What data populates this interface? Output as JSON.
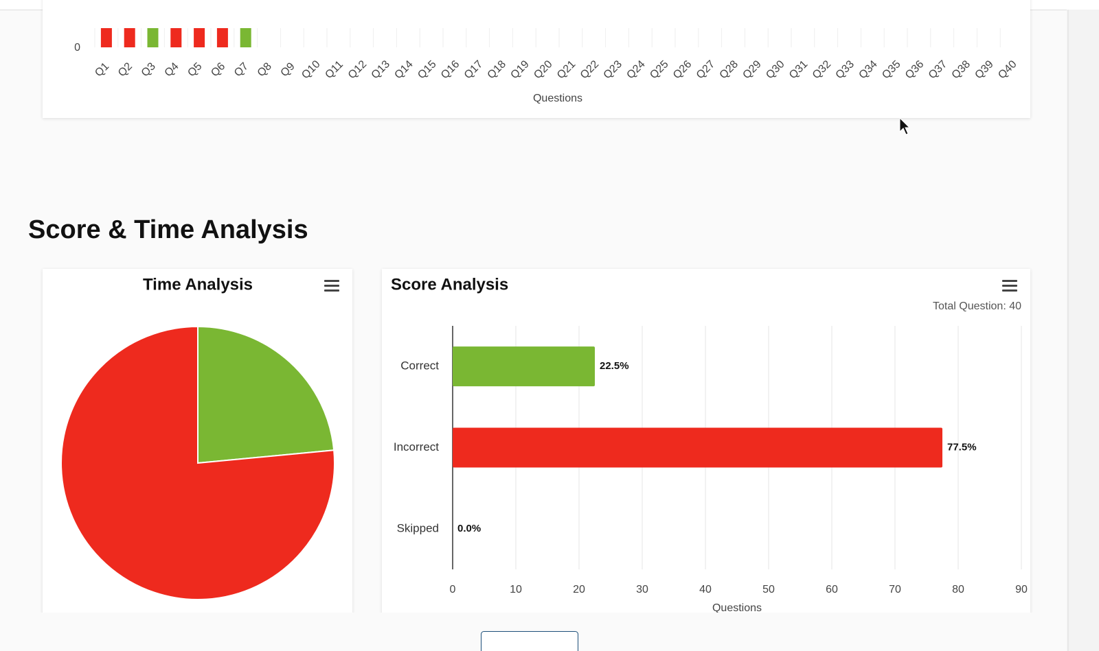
{
  "heading": "Score & Time Analysis",
  "chart_data": [
    {
      "type": "bar",
      "x_label": "Questions",
      "categories": [
        "Q1",
        "Q2",
        "Q3",
        "Q4",
        "Q5",
        "Q6",
        "Q7",
        "Q8",
        "Q9",
        "Q10",
        "Q11",
        "Q12",
        "Q13",
        "Q14",
        "Q15",
        "Q16",
        "Q17",
        "Q18",
        "Q19",
        "Q20",
        "Q21",
        "Q22",
        "Q23",
        "Q24",
        "Q25",
        "Q26",
        "Q27",
        "Q28",
        "Q29",
        "Q30",
        "Q31",
        "Q32",
        "Q33",
        "Q34",
        "Q35",
        "Q36",
        "Q37",
        "Q38",
        "Q39",
        "Q40"
      ],
      "values": [
        1,
        1,
        1,
        1,
        1,
        1,
        1,
        null,
        null,
        null,
        null,
        null,
        null,
        null,
        null,
        null,
        null,
        null,
        null,
        null,
        null,
        null,
        null,
        null,
        null,
        null,
        null,
        null,
        null,
        null,
        null,
        null,
        null,
        null,
        null,
        null,
        null,
        null,
        null,
        null
      ],
      "colors": [
        "#ee2a1e",
        "#ee2a1e",
        "#7ab733",
        "#ee2a1e",
        "#ee2a1e",
        "#ee2a1e",
        "#7ab733",
        null,
        null,
        null,
        null,
        null,
        null,
        null,
        null,
        null,
        null,
        null,
        null,
        null,
        null,
        null,
        null,
        null,
        null,
        null,
        null,
        null,
        null,
        null,
        null,
        null,
        null,
        null,
        null,
        null,
        null,
        null,
        null,
        null
      ],
      "ylim": [
        0,
        1
      ],
      "yticks": [
        0
      ]
    },
    {
      "type": "pie",
      "title": "Time Analysis",
      "values": [
        23.5,
        76.5
      ],
      "colors": [
        "#7ab733",
        "#ee2a1e"
      ]
    },
    {
      "type": "bar",
      "horizontal": true,
      "title": "Score Analysis",
      "subtitle": "Total Question: 40",
      "x_label": "Questions",
      "categories": [
        "Correct",
        "Incorrect",
        "Skipped"
      ],
      "values": [
        22.5,
        77.5,
        0
      ],
      "value_labels": [
        "22.5%",
        "77.5%",
        "0.0%"
      ],
      "colors": [
        "#7ab733",
        "#ee2a1e",
        "#ee2a1e"
      ],
      "xlim": [
        0,
        90
      ],
      "xticks": [
        0,
        10,
        20,
        30,
        40,
        50,
        60,
        70,
        80,
        90
      ],
      "grid": true
    }
  ]
}
